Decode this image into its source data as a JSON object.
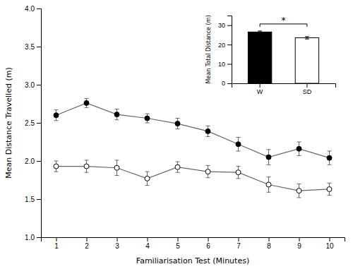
{
  "chart_data": [
    {
      "type": "line",
      "xlabel": "Familiarisation Test (Minutes)",
      "ylabel": "Mean Distance Travelled (m)",
      "x": [
        1,
        2,
        3,
        4,
        5,
        6,
        7,
        8,
        9,
        10
      ],
      "series": [
        {
          "color": "#666666",
          "marker": "filled-circle",
          "values": [
            2.6,
            2.76,
            2.61,
            2.56,
            2.49,
            2.39,
            2.22,
            2.05,
            2.16,
            2.04
          ],
          "errors": [
            0.07,
            0.06,
            0.07,
            0.06,
            0.07,
            0.07,
            0.09,
            0.1,
            0.09,
            0.09
          ]
        },
        {
          "color": "#666666",
          "marker": "open-circle",
          "values": [
            1.93,
            1.93,
            1.91,
            1.77,
            1.92,
            1.86,
            1.85,
            1.69,
            1.61,
            1.63
          ],
          "errors": [
            0.07,
            0.08,
            0.1,
            0.09,
            0.07,
            0.08,
            0.08,
            0.1,
            0.09,
            0.08
          ]
        }
      ],
      "xlim": [
        0.5,
        10.5
      ],
      "xticks": [
        1,
        2,
        3,
        4,
        5,
        6,
        7,
        8,
        9,
        10
      ],
      "ylim": [
        1.0,
        4.0
      ],
      "yticks": [
        {
          "value": 1.0,
          "label": "1.0"
        },
        1.5,
        {
          "value": 2.0,
          "label": "2.0"
        },
        2.5,
        {
          "value": 3.0,
          "label": "3.0"
        },
        3.5,
        {
          "value": 4.0,
          "label": "4.0"
        }
      ],
      "grid": false
    },
    {
      "type": "bar",
      "ylabel": "Mean Total Distance (m)",
      "categories": [
        "W",
        "SD"
      ],
      "values": [
        26.5,
        23.5
      ],
      "errors": [
        0.5,
        0.6
      ],
      "colors": [
        "black",
        "white"
      ],
      "ylim": [
        0,
        35
      ],
      "yticks": [
        0,
        10,
        20,
        30
      ],
      "annotation": "*",
      "grid": false
    }
  ]
}
